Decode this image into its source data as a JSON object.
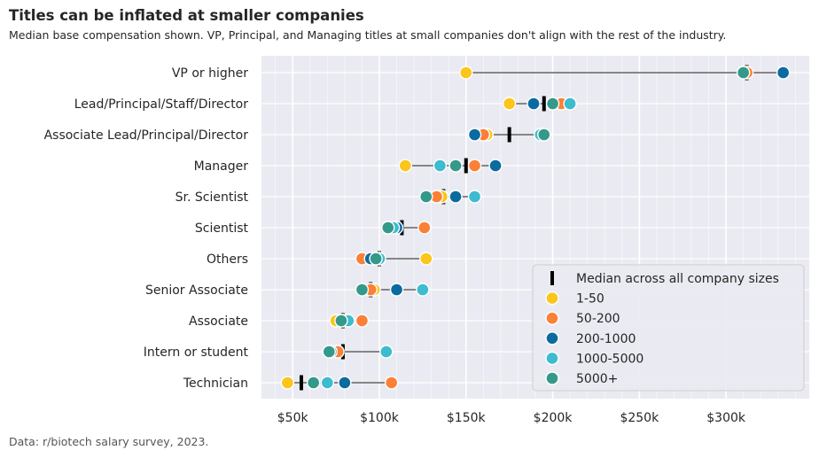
{
  "title": "Titles can be inflated at smaller companies",
  "subtitle": "Median base compensation shown. VP, Principal, and Managing titles at small companies don't align with the rest of the industry.",
  "source": "Data: r/biotech salary survey, 2023.",
  "colors": {
    "1-50": "#fbc51b",
    "50-200": "#fb8037",
    "200-1000": "#0b6ba0",
    "1000-5000": "#3dbbcf",
    "5000+": "#33998a",
    "median": "#000000",
    "range_line": "#777777",
    "panel": "#eaeaf2",
    "grid": "#ffffff"
  },
  "chart_data": {
    "type": "dot-range",
    "title": "Titles can be inflated at smaller companies",
    "xlabel": "",
    "ylabel": "",
    "xlim": [
      32000,
      348000
    ],
    "x_ticks": [
      50000,
      100000,
      150000,
      200000,
      250000,
      300000
    ],
    "x_tick_labels": [
      "$50k",
      "$100k",
      "$150k",
      "$200k",
      "$250k",
      "$300k"
    ],
    "legend_position": "lower-right",
    "legend": [
      "Median across all company sizes",
      "1-50",
      "50-200",
      "200-1000",
      "1000-5000",
      "5000+"
    ],
    "series_names": [
      "1-50",
      "50-200",
      "200-1000",
      "1000-5000",
      "5000+"
    ],
    "categories": [
      {
        "label": "VP or higher",
        "median": 312000,
        "values": {
          "1-50": 150000,
          "50-200": 312000,
          "200-1000": 333000,
          "5000+": 310000
        }
      },
      {
        "label": "Lead/Principal/Staff/Director",
        "median": 195000,
        "values": {
          "1-50": 175000,
          "50-200": 205000,
          "200-1000": 189000,
          "1000-5000": 210000,
          "5000+": 200000
        }
      },
      {
        "label": "Associate Lead/Principal/Director",
        "median": 175000,
        "values": {
          "1-50": 162000,
          "50-200": 160000,
          "200-1000": 155000,
          "1000-5000": 193000,
          "5000+": 195000
        }
      },
      {
        "label": "Manager",
        "median": 150000,
        "values": {
          "1-50": 115000,
          "50-200": 155000,
          "200-1000": 167000,
          "1000-5000": 135000,
          "5000+": 144000
        }
      },
      {
        "label": "Sr. Scientist",
        "median": 137000,
        "values": {
          "1-50": 136000,
          "50-200": 133000,
          "200-1000": 144000,
          "1000-5000": 155000,
          "5000+": 127000
        }
      },
      {
        "label": "Scientist",
        "median": 113000,
        "values": {
          "1-50": 109000,
          "50-200": 126000,
          "200-1000": 110000,
          "1000-5000": 108000,
          "5000+": 105000
        }
      },
      {
        "label": "Others",
        "median": 100000,
        "values": {
          "1-50": 127000,
          "50-200": 90000,
          "200-1000": 95000,
          "1000-5000": 100000,
          "5000+": 98000
        }
      },
      {
        "label": "Senior Associate",
        "median": 95000,
        "values": {
          "1-50": 97000,
          "50-200": 95000,
          "200-1000": 110000,
          "1000-5000": 125000,
          "5000+": 90000
        }
      },
      {
        "label": "Associate",
        "median": 79000,
        "values": {
          "1-50": 75000,
          "50-200": 90000,
          "200-1000": 79000,
          "1000-5000": 82000,
          "5000+": 78000
        }
      },
      {
        "label": "Intern or student",
        "median": 79000,
        "values": {
          "1-50": 76000,
          "50-200": 76000,
          "200-1000": 72000,
          "1000-5000": 104000,
          "5000+": 71000
        }
      },
      {
        "label": "Technician",
        "median": 55000,
        "values": {
          "1-50": 47000,
          "50-200": 107000,
          "200-1000": 80000,
          "1000-5000": 70000,
          "5000+": 62000
        }
      }
    ]
  }
}
